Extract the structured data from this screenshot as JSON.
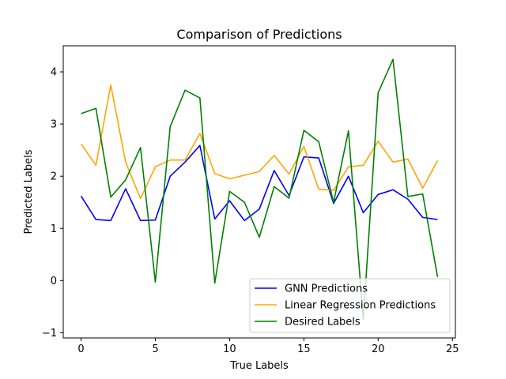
{
  "chart_data": {
    "type": "line",
    "title": "Comparison of Predictions",
    "xlabel": "True Labels",
    "ylabel": "Predicted Labels",
    "xlim": [
      -1.2,
      25.2
    ],
    "ylim": [
      -1.1,
      4.5
    ],
    "xticks": [
      0,
      5,
      10,
      15,
      20,
      25
    ],
    "yticks": [
      -1,
      0,
      1,
      2,
      3,
      4
    ],
    "grid": false,
    "legend_position": "lower-right",
    "x": [
      0,
      1,
      2,
      3,
      4,
      5,
      6,
      7,
      8,
      9,
      10,
      11,
      12,
      13,
      14,
      15,
      16,
      17,
      18,
      19,
      20,
      21,
      22,
      23,
      24
    ],
    "series": [
      {
        "name": "GNN Predictions",
        "color": "#0000ff",
        "values": [
          1.62,
          1.17,
          1.15,
          1.76,
          1.15,
          1.16,
          2.0,
          2.27,
          2.59,
          1.18,
          1.53,
          1.15,
          1.37,
          2.11,
          1.63,
          2.37,
          2.35,
          1.48,
          2.0,
          1.3,
          1.65,
          1.74,
          1.56,
          1.21,
          1.17
        ]
      },
      {
        "name": "Linear Regression Predictions",
        "color": "#ffa500",
        "values": [
          2.62,
          2.21,
          3.75,
          2.27,
          1.57,
          2.18,
          2.31,
          2.31,
          2.82,
          2.05,
          1.95,
          2.02,
          2.09,
          2.4,
          2.04,
          2.57,
          1.75,
          1.73,
          2.18,
          2.21,
          2.67,
          2.27,
          2.33,
          1.77,
          2.3
        ]
      },
      {
        "name": "Desired Labels",
        "color": "#008000",
        "values": [
          3.2,
          3.3,
          1.6,
          1.93,
          2.55,
          -0.03,
          2.95,
          3.65,
          3.5,
          -0.05,
          1.71,
          1.5,
          0.83,
          1.8,
          1.58,
          2.88,
          2.66,
          1.5,
          2.87,
          -0.75,
          3.6,
          4.24,
          1.61,
          1.66,
          0.07
        ]
      }
    ]
  }
}
